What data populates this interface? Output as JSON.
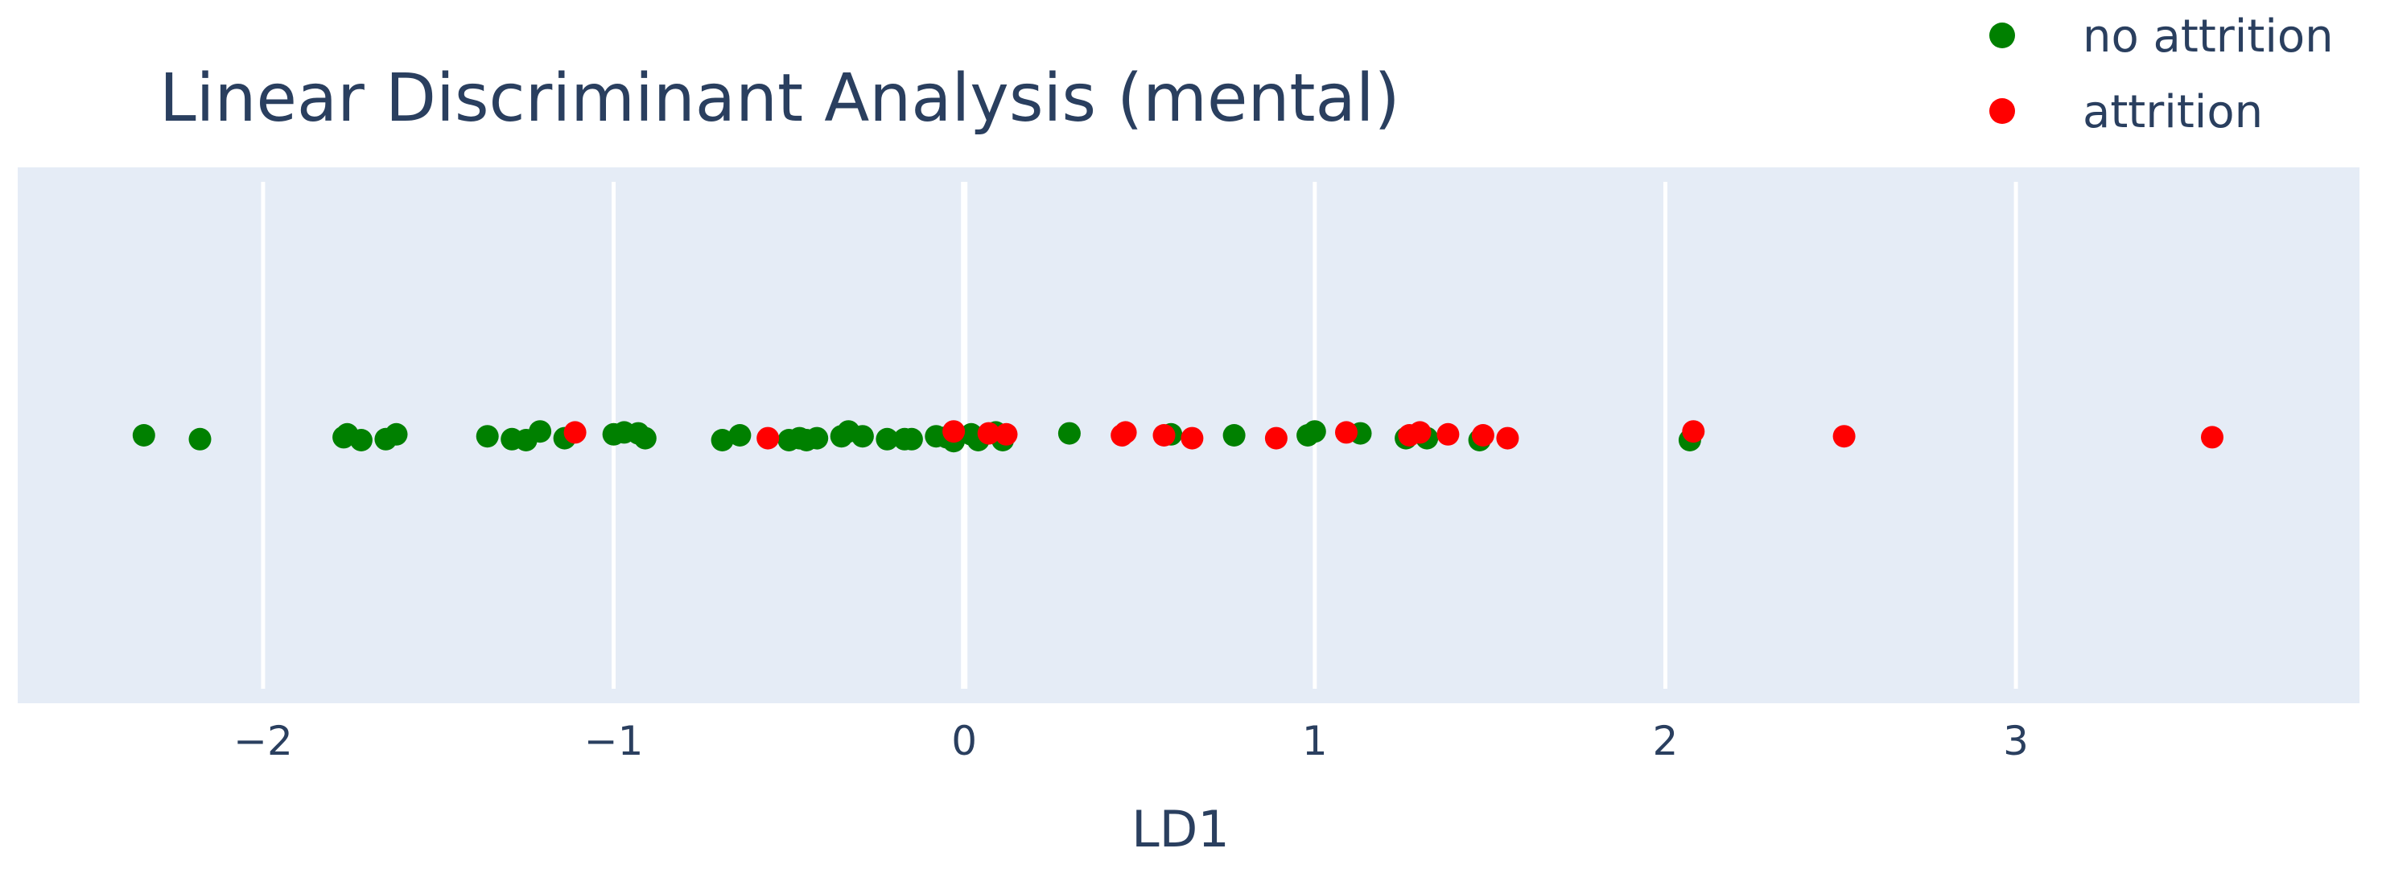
{
  "chart_data": {
    "type": "scatter",
    "title": "Linear Discriminant Analysis (mental)",
    "xlabel": "LD1",
    "ylabel": "",
    "xlim": [
      -2.7,
      3.98
    ],
    "ylim": [
      -1,
      1
    ],
    "x_ticks": [
      -2,
      -1,
      0,
      1,
      2,
      3
    ],
    "x_tick_labels": [
      "−2",
      "−1",
      "0",
      "1",
      "2",
      "3"
    ],
    "grid": true,
    "plot_background": "#e5ecf6",
    "legend": {
      "position": "top-right",
      "entries": [
        "no attrition",
        "attrition"
      ]
    },
    "series": [
      {
        "name": "no attrition",
        "color": "#008000",
        "points": [
          {
            "x": -2.34,
            "y": 0.0
          },
          {
            "x": -2.18,
            "y": -0.04
          },
          {
            "x": -1.77,
            "y": -0.02
          },
          {
            "x": -1.76,
            "y": 0.01
          },
          {
            "x": -1.72,
            "y": -0.05
          },
          {
            "x": -1.65,
            "y": -0.04
          },
          {
            "x": -1.62,
            "y": 0.01
          },
          {
            "x": -1.36,
            "y": -0.01
          },
          {
            "x": -1.29,
            "y": -0.04
          },
          {
            "x": -1.25,
            "y": -0.05
          },
          {
            "x": -1.21,
            "y": 0.04
          },
          {
            "x": -1.14,
            "y": -0.03
          },
          {
            "x": -1.0,
            "y": 0.01
          },
          {
            "x": -0.97,
            "y": 0.03
          },
          {
            "x": -0.93,
            "y": 0.02
          },
          {
            "x": -0.91,
            "y": -0.03
          },
          {
            "x": -0.69,
            "y": -0.05
          },
          {
            "x": -0.64,
            "y": 0.0
          },
          {
            "x": -0.5,
            "y": -0.05
          },
          {
            "x": -0.47,
            "y": -0.03
          },
          {
            "x": -0.45,
            "y": -0.05
          },
          {
            "x": -0.42,
            "y": -0.03
          },
          {
            "x": -0.35,
            "y": -0.01
          },
          {
            "x": -0.33,
            "y": 0.04
          },
          {
            "x": -0.29,
            "y": -0.01
          },
          {
            "x": -0.22,
            "y": -0.04
          },
          {
            "x": -0.17,
            "y": -0.04
          },
          {
            "x": -0.15,
            "y": -0.04
          },
          {
            "x": -0.08,
            "y": -0.01
          },
          {
            "x": -0.05,
            "y": -0.02
          },
          {
            "x": -0.03,
            "y": -0.06
          },
          {
            "x": 0.02,
            "y": 0.01
          },
          {
            "x": 0.04,
            "y": -0.05
          },
          {
            "x": 0.09,
            "y": 0.03
          },
          {
            "x": 0.11,
            "y": -0.05
          },
          {
            "x": 0.3,
            "y": 0.02
          },
          {
            "x": 0.59,
            "y": 0.01
          },
          {
            "x": 0.77,
            "y": 0.0
          },
          {
            "x": 0.98,
            "y": 0.0
          },
          {
            "x": 1.0,
            "y": 0.04
          },
          {
            "x": 1.13,
            "y": 0.02
          },
          {
            "x": 1.26,
            "y": -0.03
          },
          {
            "x": 1.32,
            "y": -0.03
          },
          {
            "x": 1.47,
            "y": -0.05
          },
          {
            "x": 2.07,
            "y": -0.05
          }
        ]
      },
      {
        "name": "attrition",
        "color": "#ff0000",
        "points": [
          {
            "x": -1.11,
            "y": 0.03
          },
          {
            "x": -0.56,
            "y": -0.03
          },
          {
            "x": -0.03,
            "y": 0.04
          },
          {
            "x": 0.07,
            "y": 0.02
          },
          {
            "x": 0.12,
            "y": 0.01
          },
          {
            "x": 0.45,
            "y": 0.0
          },
          {
            "x": 0.46,
            "y": 0.03
          },
          {
            "x": 0.57,
            "y": 0.0
          },
          {
            "x": 0.65,
            "y": -0.03
          },
          {
            "x": 0.89,
            "y": -0.03
          },
          {
            "x": 1.09,
            "y": 0.03
          },
          {
            "x": 1.27,
            "y": 0.0
          },
          {
            "x": 1.3,
            "y": 0.03
          },
          {
            "x": 1.38,
            "y": 0.01
          },
          {
            "x": 1.48,
            "y": 0.0
          },
          {
            "x": 1.55,
            "y": -0.03
          },
          {
            "x": 2.08,
            "y": 0.04
          },
          {
            "x": 2.51,
            "y": -0.01
          },
          {
            "x": 3.56,
            "y": -0.02
          }
        ]
      }
    ]
  }
}
